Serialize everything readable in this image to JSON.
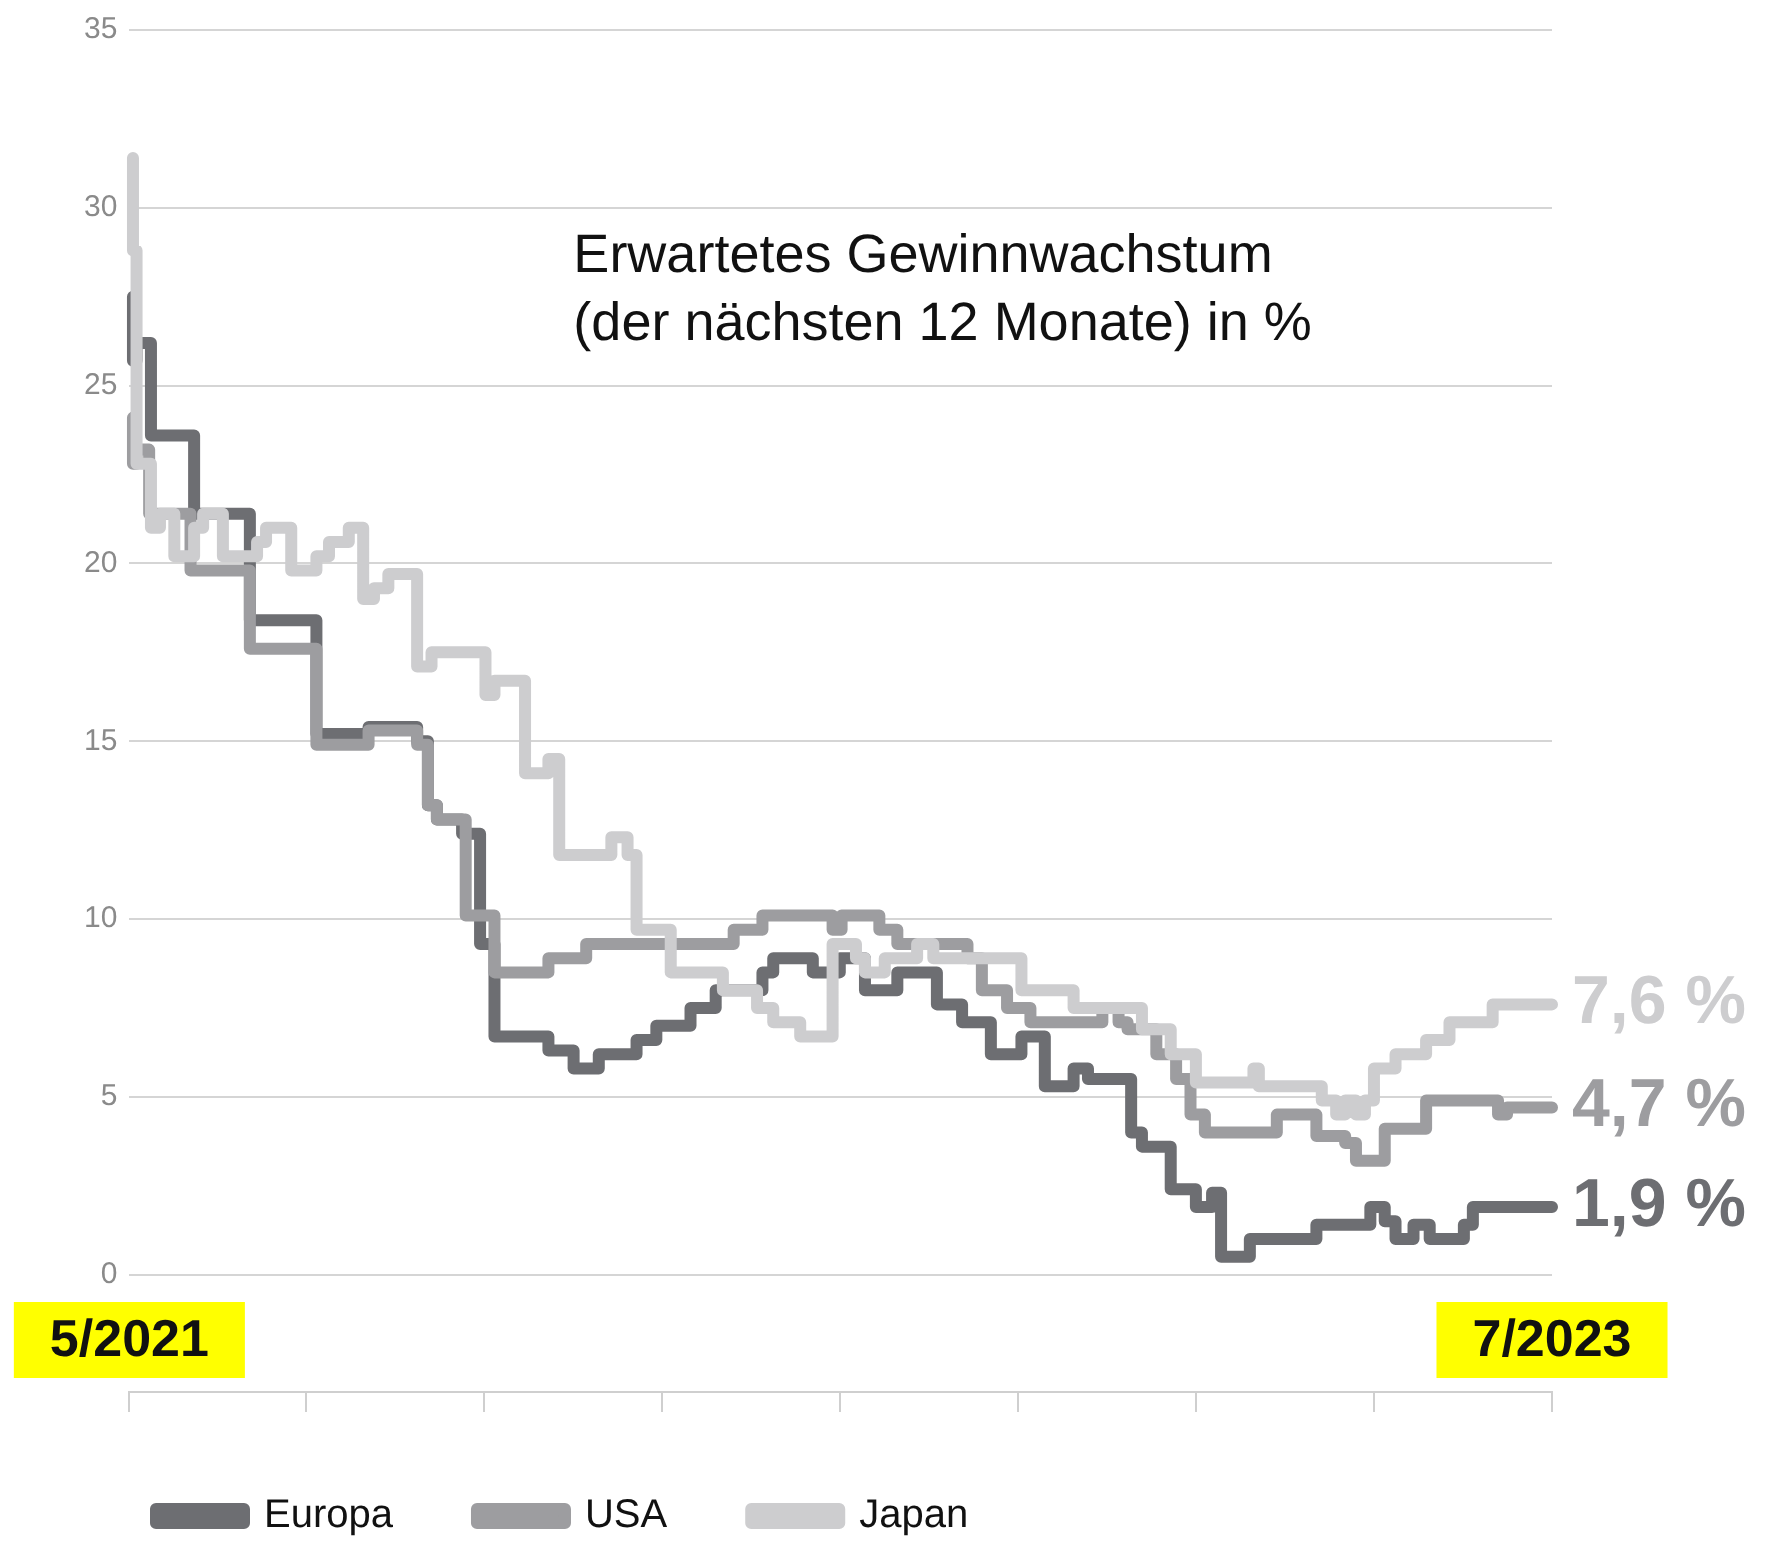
{
  "chart_data": {
    "type": "step",
    "title": "Erwartetes Gewinnwachstum (der nächsten 12 Monate) in %",
    "xlim": [
      "2021-05-01",
      "2023-07-01"
    ],
    "xticks": [
      {
        "value": "2021-05-01",
        "label": "5/2021"
      },
      {
        "value": "2021-08-07",
        "label": null
      },
      {
        "value": "2021-11-14",
        "label": null
      },
      {
        "value": "2022-02-21",
        "label": null
      },
      {
        "value": "2022-05-31",
        "label": null
      },
      {
        "value": "2022-09-07",
        "label": null
      },
      {
        "value": "2022-12-15",
        "label": null
      },
      {
        "value": "2023-03-24",
        "label": null
      },
      {
        "value": "2023-07-01",
        "label": "7/2023"
      }
    ],
    "ylim": [
      -3.3,
      35
    ],
    "yticks": [
      0,
      5,
      10,
      15,
      20,
      25,
      30,
      35
    ],
    "grid": "y",
    "legend": "bottom left",
    "line_style": "solid",
    "marker": "none",
    "series": [
      {
        "name": "Europa",
        "color": "#6d6e72",
        "x": [
          "2021-05-03",
          "2021-05-05",
          "2021-05-13",
          "2021-06-06",
          "2021-07-07",
          "2021-08-13",
          "2021-09-11",
          "2021-10-08",
          "2021-10-14",
          "2021-10-19",
          "2021-11-02",
          "2021-11-12",
          "2021-11-20",
          "2021-12-20",
          "2022-01-03",
          "2022-01-17",
          "2022-02-07",
          "2022-02-18",
          "2022-03-09",
          "2022-03-23",
          "2022-04-18",
          "2022-04-24",
          "2022-05-16",
          "2022-05-31",
          "2022-06-14",
          "2022-07-02",
          "2022-07-24",
          "2022-08-07",
          "2022-08-23",
          "2022-09-09",
          "2022-09-22",
          "2022-10-08",
          "2022-10-16",
          "2022-11-09",
          "2022-11-15",
          "2022-12-01",
          "2022-12-15",
          "2022-12-24",
          "2022-12-29",
          "2023-01-14",
          "2023-02-20",
          "2023-03-22",
          "2023-03-30",
          "2023-04-05",
          "2023-04-15",
          "2023-04-24",
          "2023-05-13",
          "2023-05-18",
          "2023-06-01",
          "2023-07-01"
        ],
        "values": [
          27.5,
          25.7,
          26.2,
          23.6,
          21.4,
          18.4,
          15.2,
          15.4,
          15.0,
          13.2,
          12.8,
          12.4,
          9.3,
          6.7,
          6.3,
          5.8,
          6.2,
          6.6,
          7.0,
          7.5,
          8.0,
          8.5,
          8.9,
          8.5,
          8.9,
          8.0,
          8.5,
          7.6,
          7.1,
          6.2,
          6.7,
          5.3,
          5.8,
          5.5,
          4.0,
          3.6,
          2.4,
          1.9,
          2.3,
          0.5,
          1.0,
          1.4,
          1.9,
          1.5,
          1.0,
          1.4,
          1.0,
          1.4,
          1.9,
          1.9
        ]
      },
      {
        "name": "USA",
        "color": "#9d9da0",
        "x": [
          "2021-05-03",
          "2021-05-05",
          "2021-05-12",
          "2021-06-04",
          "2021-07-07",
          "2021-08-13",
          "2021-09-11",
          "2021-10-08",
          "2021-10-14",
          "2021-10-19",
          "2021-11-04",
          "2021-11-20",
          "2021-12-20",
          "2022-01-10",
          "2022-04-02",
          "2022-04-18",
          "2022-05-27",
          "2022-06-01",
          "2022-06-22",
          "2022-07-02",
          "2022-08-10",
          "2022-08-18",
          "2022-09-01",
          "2022-09-14",
          "2022-10-24",
          "2022-11-02",
          "2022-11-07",
          "2022-11-23",
          "2022-12-04",
          "2022-12-12",
          "2022-12-20",
          "2023-01-29",
          "2023-02-20",
          "2023-03-08",
          "2023-03-14",
          "2023-03-30",
          "2023-04-22",
          "2023-06-01",
          "2023-06-06",
          "2023-06-20",
          "2023-07-01"
        ],
        "values": [
          24.1,
          22.8,
          23.2,
          21.4,
          19.8,
          17.6,
          14.9,
          15.3,
          14.9,
          13.2,
          12.8,
          10.1,
          8.5,
          8.9,
          9.3,
          9.7,
          10.1,
          9.7,
          10.1,
          9.7,
          9.3,
          8.9,
          8.0,
          7.5,
          7.1,
          7.5,
          7.1,
          6.9,
          6.2,
          5.5,
          4.5,
          4.0,
          4.5,
          3.9,
          3.7,
          3.2,
          4.1,
          4.9,
          4.5,
          4.7,
          4.7
        ]
      },
      {
        "name": "Japan",
        "color": "#cdcdcf",
        "x": [
          "2021-05-03",
          "2021-05-05",
          "2021-05-13",
          "2021-05-18",
          "2021-05-26",
          "2021-06-06",
          "2021-06-11",
          "2021-06-22",
          "2021-07-11",
          "2021-07-16",
          "2021-07-30",
          "2021-08-13",
          "2021-08-20",
          "2021-08-31",
          "2021-09-08",
          "2021-09-14",
          "2021-09-22",
          "2021-10-08",
          "2021-10-16",
          "2021-11-15",
          "2021-11-20",
          "2021-12-07",
          "2021-12-20",
          "2021-12-26",
          "2022-01-24",
          "2022-02-02",
          "2022-02-07",
          "2022-02-26",
          "2022-03-27",
          "2022-04-15",
          "2022-04-24",
          "2022-05-09",
          "2022-05-27",
          "2022-06-09",
          "2022-06-14",
          "2022-06-25",
          "2022-07-13",
          "2022-07-22",
          "2022-09-09",
          "2022-10-08",
          "2022-11-15",
          "2022-12-01",
          "2022-12-15",
          "2023-01-16",
          "2023-01-19",
          "2023-02-23",
          "2023-03-03",
          "2023-03-08",
          "2023-03-14",
          "2023-03-19",
          "2023-03-24",
          "2023-04-05",
          "2023-04-22",
          "2023-05-05",
          "2023-05-29",
          "2023-06-14",
          "2023-07-01"
        ],
        "values": [
          31.4,
          28.8,
          22.8,
          21.0,
          21.4,
          20.2,
          21.0,
          21.4,
          20.2,
          20.6,
          21.0,
          19.8,
          20.2,
          20.6,
          21.0,
          19.0,
          19.3,
          19.7,
          17.1,
          17.5,
          16.3,
          16.7,
          14.1,
          14.5,
          11.8,
          12.3,
          11.8,
          9.7,
          8.5,
          8.0,
          7.5,
          7.1,
          6.7,
          9.3,
          8.9,
          8.5,
          8.9,
          9.3,
          8.9,
          8.0,
          7.5,
          6.9,
          6.2,
          5.4,
          5.8,
          5.3,
          4.9,
          4.5,
          4.9,
          4.5,
          4.9,
          5.8,
          6.2,
          6.6,
          7.1,
          7.6,
          7.6
        ]
      }
    ],
    "annotations": [
      {
        "text": "7,6 %",
        "x": "2023-07-01",
        "y": 7.6
      },
      {
        "text": "4,7 %",
        "x": "2023-07-01",
        "y": 4.7
      },
      {
        "text": "1,9 %",
        "x": "2023-07-01",
        "y": 1.9
      }
    ]
  }
}
